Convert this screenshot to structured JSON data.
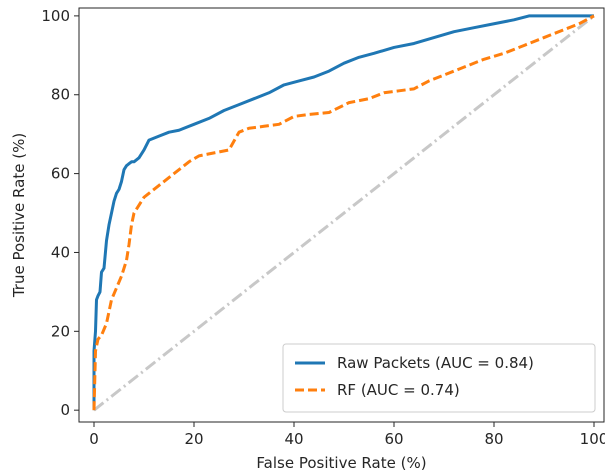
{
  "chart_data": {
    "type": "line",
    "title": "",
    "xlabel": "False Positive Rate (%)",
    "ylabel": "True Positive Rate (%)",
    "xlim": [
      -3,
      102
    ],
    "ylim": [
      -3,
      102
    ],
    "xticks": [
      0,
      20,
      40,
      60,
      80,
      100
    ],
    "yticks": [
      0,
      20,
      40,
      60,
      80,
      100
    ],
    "grid": false,
    "legend_position": "lower-right",
    "series": [
      {
        "name": "Raw Packets (AUC = 0.84)",
        "color": "#1f77b4",
        "style": "solid",
        "x": [
          0,
          0,
          0.3,
          0.5,
          0.8,
          1.2,
          1.5,
          2,
          2.5,
          3,
          3.5,
          4,
          4.5,
          5,
          5.5,
          6,
          6.5,
          7,
          7.5,
          8,
          9,
          10,
          11,
          12,
          13,
          15,
          17,
          20,
          23,
          26,
          29,
          32,
          35,
          38,
          41,
          44,
          47,
          50,
          53,
          56,
          60,
          64,
          68,
          72,
          76,
          80,
          84,
          87,
          90,
          93,
          96,
          100
        ],
        "y": [
          0,
          15,
          20,
          28,
          29,
          30,
          35,
          36,
          43,
          47,
          50,
          53,
          55,
          56,
          58,
          61,
          62,
          62.5,
          63,
          63,
          64,
          66,
          68.5,
          69,
          69.5,
          70.5,
          71,
          72.5,
          74,
          76,
          77.5,
          79,
          80.5,
          82.5,
          83.5,
          84.5,
          86,
          88,
          89.5,
          90.5,
          92,
          93,
          94.5,
          96,
          97,
          98,
          99,
          100,
          100,
          100,
          100,
          100
        ]
      },
      {
        "name": "RF (AUC = 0.74)",
        "color": "#ff7f0e",
        "style": "dashed",
        "x": [
          0,
          0.3,
          0.8,
          1.5,
          2.5,
          3.5,
          4.5,
          5.5,
          6.5,
          7,
          7.5,
          8,
          9,
          10,
          11,
          13,
          15,
          17,
          19,
          21,
          23,
          25,
          27,
          29,
          31,
          34,
          37,
          40,
          43,
          47,
          51,
          55,
          58,
          61,
          64,
          67,
          70,
          74,
          78,
          82,
          86,
          90,
          94,
          97,
          100
        ],
        "y": [
          0,
          15,
          18,
          19,
          22,
          28,
          31,
          34,
          38,
          42,
          47,
          50,
          52,
          54,
          55,
          57,
          59,
          61,
          63,
          64.5,
          65,
          65.5,
          66,
          70.5,
          71.5,
          72,
          72.5,
          74.5,
          75,
          75.5,
          78,
          79,
          80.5,
          81,
          81.5,
          83.5,
          85,
          87,
          89,
          90.5,
          92.5,
          94.5,
          96.5,
          98,
          100
        ]
      },
      {
        "name": "",
        "color": "#c8c8c8",
        "style": "dashdot",
        "x": [
          0,
          100
        ],
        "y": [
          0,
          100
        ]
      }
    ]
  }
}
